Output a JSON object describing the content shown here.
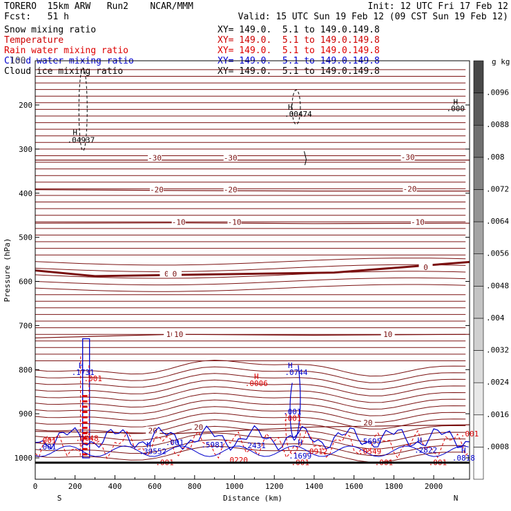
{
  "header": {
    "title_left": "TORERO  15km ARW   Run2    NCAR/MMM",
    "init": "Init: 12 UTC Fri 17 Feb 12",
    "fcst": "Fcst:   51 h",
    "valid": "Valid: 15 UTC Sun 19 Feb 12 (09 CST Sun 19 Feb 12)"
  },
  "fields": [
    {
      "name": "Snow mixing ratio",
      "xy": "XY= 149.0.  5.1 to 149.0.149.8",
      "color": "#000000"
    },
    {
      "name": "Temperature",
      "xy": "XY= 149.0.  5.1 to 149.0.149.8",
      "color": "#cc0000"
    },
    {
      "name": "Rain water mixing ratio",
      "xy": "XY= 149.0.  5.1 to 149.0.149.8",
      "color": "#dd0000"
    },
    {
      "name": "Cloud water mixing ratio",
      "xy": "XY= 149.0.  5.1 to 149.0.149.8",
      "color": "#0000cc"
    },
    {
      "name": "Cloud ice mixing ratio",
      "xy": "XY= 149.0.  5.1 to 149.0.149.8",
      "color": "#000000"
    }
  ],
  "overlap_text": "100",
  "chart_data": {
    "type": "cross-section",
    "xlabel": "Distance (km)",
    "ylabel": "Pressure (hPa)",
    "xlim": [
      0,
      2180
    ],
    "ylim": [
      1045,
      100
    ],
    "x_ticks": [
      0,
      200,
      400,
      600,
      800,
      1000,
      1200,
      1400,
      1600,
      1800,
      2000
    ],
    "y_ticks": [
      200,
      300,
      400,
      500,
      600,
      700,
      800,
      900,
      1000
    ],
    "endpoint_labels": {
      "left": "S",
      "right": "N"
    },
    "colorbar": {
      "unit": "g kg⁻¹",
      "ticks": [
        ".0008",
        ".0016",
        ".0024",
        ".0032",
        ".004",
        ".0048",
        ".0056",
        ".0064",
        ".0072",
        ".008",
        ".0088",
        ".0096"
      ],
      "colors": [
        "#ffffff",
        "#f4f4f4",
        "#e8e8e8",
        "#dcdcdc",
        "#d0d0d0",
        "#c4c4c4",
        "#b4b4b4",
        "#a4a4a4",
        "#949494",
        "#848484",
        "#707070",
        "#5c5c5c",
        "#484848"
      ]
    },
    "temperature_isotherms": [
      {
        "label": "-30",
        "p": [
          325,
          325,
          325,
          325
        ],
        "x": [
          0,
          700,
          1400,
          2180
        ]
      },
      {
        "label": "-20",
        "p": [
          392,
          394,
          395,
          395
        ],
        "x": [
          0,
          700,
          1400,
          2180
        ]
      },
      {
        "label": "-10",
        "p": [
          468,
          467,
          469,
          468
        ],
        "x": [
          0,
          700,
          1400,
          2180
        ]
      },
      {
        "label": "0",
        "p": [
          575,
          588,
          580,
          556
        ],
        "x": [
          0,
          300,
          1500,
          2180
        ]
      },
      {
        "label": "10",
        "p": [
          728,
          720,
          722,
          720
        ],
        "x": [
          0,
          700,
          1400,
          2180
        ]
      },
      {
        "label": "20",
        "p": [
          940,
          945,
          930,
          925
        ],
        "x": [
          0,
          700,
          1400,
          2180
        ]
      }
    ],
    "isotherm_labels": [
      {
        "text": "-30",
        "x": 600,
        "p": 320
      },
      {
        "text": "-30",
        "x": 980,
        "p": 320
      },
      {
        "text": "-30",
        "x": 1870,
        "p": 318
      },
      {
        "text": "-20",
        "x": 610,
        "p": 392
      },
      {
        "text": "-20",
        "x": 980,
        "p": 392
      },
      {
        "text": "-20",
        "x": 1880,
        "p": 390
      },
      {
        "text": "-10",
        "x": 720,
        "p": 465
      },
      {
        "text": "-10",
        "x": 1000,
        "p": 465
      },
      {
        "text": "-10",
        "x": 1920,
        "p": 465
      },
      {
        "text": "0",
        "x": 660,
        "p": 583
      },
      {
        "text": "0",
        "x": 700,
        "p": 583
      },
      {
        "text": "0",
        "x": 1960,
        "p": 568
      },
      {
        "text": "10",
        "x": 680,
        "p": 720
      },
      {
        "text": "10",
        "x": 720,
        "p": 720
      },
      {
        "text": "10",
        "x": 1770,
        "p": 720
      },
      {
        "text": "20",
        "x": 590,
        "p": 938
      },
      {
        "text": "20",
        "x": 820,
        "p": 930
      },
      {
        "text": "20",
        "x": 1670,
        "p": 920
      }
    ],
    "annotations": [
      {
        "text": "H",
        "x": 200,
        "p": 262,
        "color": "#000000"
      },
      {
        "text": ".04937",
        "x": 230,
        "p": 279,
        "color": "#000000"
      },
      {
        "text": "H",
        "x": 1280,
        "p": 205,
        "color": "#000000"
      },
      {
        "text": ".00474",
        "x": 1320,
        "p": 220,
        "color": "#000000"
      },
      {
        "text": "H",
        "x": 2110,
        "p": 193,
        "color": "#000000"
      },
      {
        "text": ".000",
        "x": 2110,
        "p": 208,
        "color": "#000000"
      },
      {
        "text": "H",
        "x": 230,
        "p": 790,
        "color": "#0000cc"
      },
      {
        "text": ".1731",
        "x": 240,
        "p": 806,
        "color": "#0000cc"
      },
      {
        "text": ".001",
        "x": 290,
        "p": 820,
        "color": "#dd0000"
      },
      {
        "text": "H",
        "x": 1110,
        "p": 815,
        "color": "#dd0000"
      },
      {
        "text": ".0006",
        "x": 1110,
        "p": 831,
        "color": "#dd0000"
      },
      {
        "text": "H",
        "x": 1280,
        "p": 790,
        "color": "#0000cc"
      },
      {
        "text": ".0744",
        "x": 1310,
        "p": 806,
        "color": "#0000cc"
      },
      {
        "text": ".001",
        "x": 1290,
        "p": 895,
        "color": "#0000cc"
      },
      {
        "text": ".001",
        "x": 1290,
        "p": 910,
        "color": "#dd0000"
      },
      {
        "text": ".001",
        "x": 60,
        "p": 960,
        "color": "#dd0000"
      },
      {
        "text": ".001",
        "x": 60,
        "p": 975,
        "color": "#0000cc"
      },
      {
        "text": ".0048",
        "x": 260,
        "p": 955,
        "color": "#dd0000"
      },
      {
        "text": "H",
        "x": 570,
        "p": 970,
        "color": "#0000cc"
      },
      {
        "text": ".39552",
        "x": 590,
        "p": 985,
        "color": "#0000cc"
      },
      {
        "text": ".001",
        "x": 700,
        "p": 965,
        "color": "#0000cc"
      },
      {
        "text": ".5981",
        "x": 890,
        "p": 970,
        "color": "#0000cc"
      },
      {
        "text": ".2431",
        "x": 1100,
        "p": 972,
        "color": "#0000cc"
      },
      {
        "text": ".0220",
        "x": 1010,
        "p": 1005,
        "color": "#dd0000"
      },
      {
        "text": ".001",
        "x": 650,
        "p": 1010,
        "color": "#dd0000"
      },
      {
        "text": "H",
        "x": 1330,
        "p": 965,
        "color": "#0000cc"
      },
      {
        "text": ".1699",
        "x": 1330,
        "p": 995,
        "color": "#0000cc"
      },
      {
        "text": ".0912",
        "x": 1410,
        "p": 985,
        "color": "#dd0000"
      },
      {
        "text": ".001",
        "x": 1330,
        "p": 1010,
        "color": "#dd0000"
      },
      {
        "text": ".5695",
        "x": 1680,
        "p": 962,
        "color": "#0000cc"
      },
      {
        "text": ".0549",
        "x": 1680,
        "p": 985,
        "color": "#dd0000"
      },
      {
        "text": "H",
        "x": 1930,
        "p": 960,
        "color": "#0000cc"
      },
      {
        "text": ".2822",
        "x": 1960,
        "p": 982,
        "color": "#0000cc"
      },
      {
        "text": ".001",
        "x": 1750,
        "p": 1010,
        "color": "#dd0000"
      },
      {
        "text": ".001",
        "x": 2020,
        "p": 1010,
        "color": "#dd0000"
      },
      {
        "text": ".001",
        "x": 2180,
        "p": 945,
        "color": "#dd0000"
      },
      {
        "text": "H",
        "x": 2150,
        "p": 983,
        "color": "#0000cc"
      },
      {
        "text": ".0818",
        "x": 2150,
        "p": 1000,
        "color": "#0000cc"
      }
    ]
  }
}
